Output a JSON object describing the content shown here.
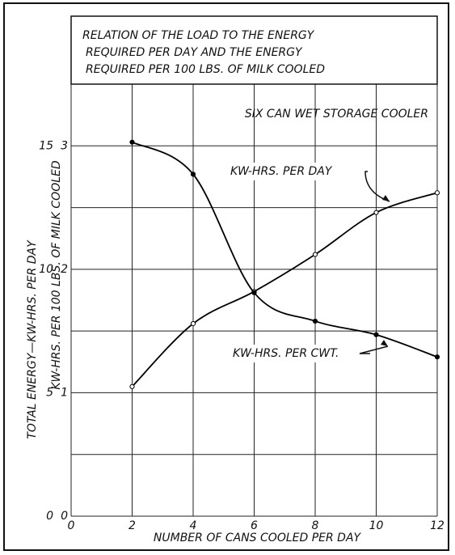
{
  "chart_data": {
    "type": "line",
    "title": [
      "RELATION OF THE LOAD TO THE ENERGY",
      "REQUIRED PER DAY AND THE ENERGY",
      "REQUIRED PER 100 LBS. OF MILK COOLED"
    ],
    "subtitle": "SIX CAN WET STORAGE COOLER",
    "x_label": "NUMBER OF CANS COOLED PER DAY",
    "y_label": "TOTAL ENERGY—KW-HRS. PER DAY",
    "y2_label": "KW-HRS. PER 100 LBS. OF MILK COOLED",
    "x": [
      2,
      4,
      6,
      8,
      10,
      12
    ],
    "series": [
      {
        "name": "KW-HRS. PER DAY",
        "color": "#000000",
        "marker": "open",
        "values": [
          5.25,
          7.8,
          9.1,
          10.6,
          12.3,
          13.1
        ]
      },
      {
        "name": "KW-HRS. PER CWT.",
        "color": "#000000",
        "marker": "filled",
        "axis": "y2",
        "values": [
          3.03,
          2.77,
          1.81,
          1.58,
          1.47,
          1.29
        ]
      }
    ],
    "xlim": [
      0,
      12
    ],
    "xticks": [
      0,
      2,
      4,
      6,
      8,
      10,
      12
    ],
    "ylim": [
      0,
      17.5
    ],
    "yticks": [
      0,
      5,
      10,
      15
    ],
    "ygrid": [
      0,
      2.5,
      5,
      7.5,
      10,
      12.5,
      15,
      17.5
    ],
    "y2lim": [
      0,
      3.5
    ],
    "y2ticks": [
      0,
      1,
      2,
      3
    ],
    "grid": true
  }
}
